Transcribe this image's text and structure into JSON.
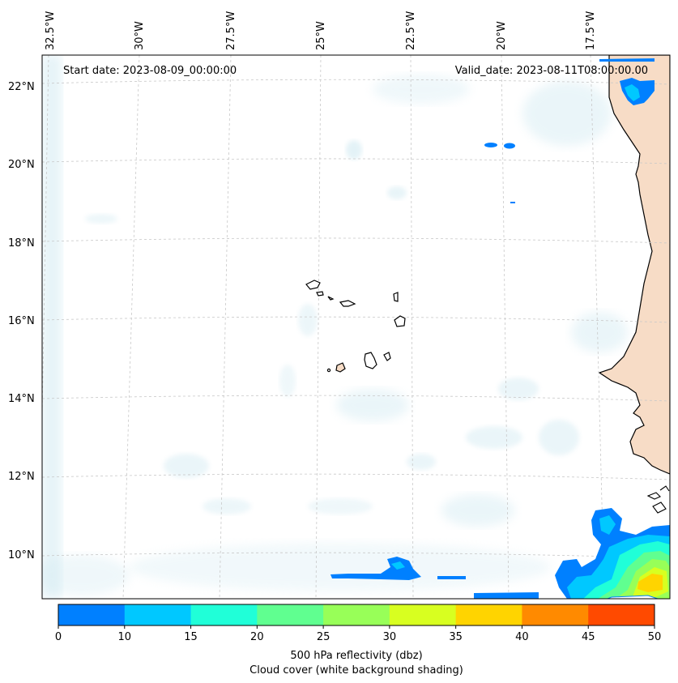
{
  "map": {
    "start_date": "Start date: 2023-08-09_00:00:00",
    "valid_date": "Valid_date: 2023-08-11T08:00:00.00",
    "longitude_labels": [
      "32.5°W",
      "30°W",
      "27.5°W",
      "25°W",
      "22.5°W",
      "20°W",
      "17.5°W"
    ],
    "latitude_labels": [
      "22°N",
      "20°N",
      "18°N",
      "16°N",
      "14°N",
      "12°N",
      "10°N"
    ],
    "extent": {
      "lon_min": -33,
      "lon_max": -15.8,
      "lat_min": 8.9,
      "lat_max": 22.8
    },
    "gridlines": true,
    "projection": "Lambert conformal (curved graticule)"
  },
  "colorbar": {
    "ticks": [
      "0",
      "10",
      "15",
      "20",
      "25",
      "30",
      "35",
      "40",
      "45",
      "50"
    ],
    "colors": [
      "#0080ff",
      "#00c8ff",
      "#20ffd8",
      "#60ff90",
      "#98ff58",
      "#d8ff20",
      "#ffd400",
      "#ff8a00",
      "#ff4a00"
    ],
    "label_line1": "500 hPa reflectivity (dbz)",
    "label_line2": "Cloud cover (white background shading)"
  },
  "colors": {
    "land_tan": "#f7dcc6",
    "cloud_blue": "#d2eaf2",
    "coast": "#000000",
    "grid": "#c8c8c8"
  }
}
